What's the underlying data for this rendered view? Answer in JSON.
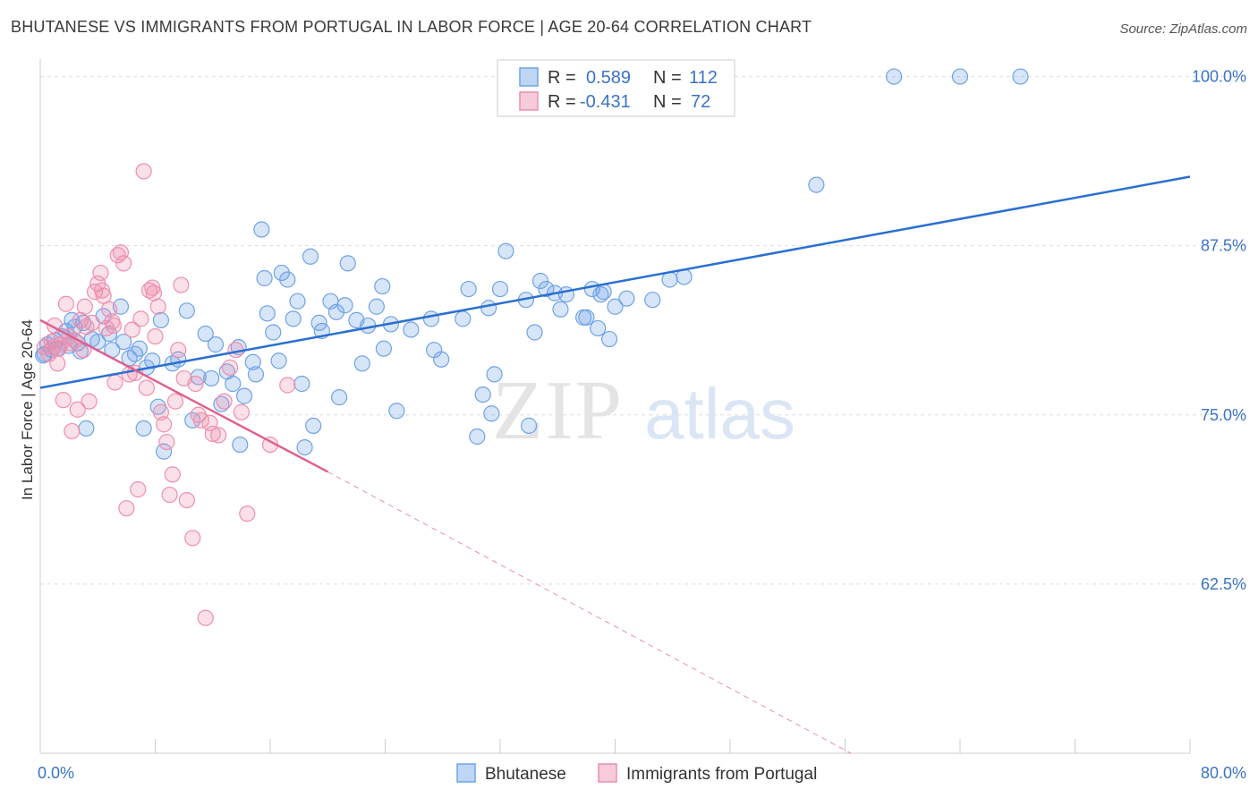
{
  "title": "BHUTANESE VS IMMIGRANTS FROM PORTUGAL IN LABOR FORCE | AGE 20-64 CORRELATION CHART",
  "source": "Source: ZipAtlas.com",
  "watermark": {
    "zip": "ZIP",
    "atlas": "atlas"
  },
  "colors": {
    "blue": "#6fa3e6",
    "blue_fill": "rgba(111,163,230,0.28)",
    "blue_line": "#2a6fd1",
    "pink": "#ee8fae",
    "pink_fill": "rgba(238,143,174,0.28)",
    "pink_line": "#e0608f",
    "tick_label": "#3b73c5",
    "grid": "#dddddd"
  },
  "legend": {
    "rows": [
      {
        "r_label": "R =",
        "r_value": "0.589",
        "n_label": "N =",
        "n_value": "112",
        "series": "blue"
      },
      {
        "r_label": "R =",
        "r_value": "-0.431",
        "n_label": "N =",
        "n_value": "72",
        "series": "pink"
      }
    ]
  },
  "chart_data": {
    "type": "scatter",
    "title": "BHUTANESE VS IMMIGRANTS FROM PORTUGAL IN LABOR FORCE | AGE 20-64 CORRELATION CHART",
    "xlabel": "",
    "ylabel": "In Labor Force | Age 20-64",
    "xlim": [
      0,
      80
    ],
    "ylim": [
      50,
      100.5
    ],
    "x_tick_labels": [
      "0.0%",
      "80.0%"
    ],
    "y_ticks": [
      62.5,
      75.0,
      87.5,
      100.0
    ],
    "y_tick_labels": [
      "62.5%",
      "75.0%",
      "87.5%",
      "100.0%"
    ],
    "grid": true,
    "legend_position": "top-center",
    "series": [
      {
        "name": "Bhutanese",
        "color": "blue",
        "trend": {
          "x": [
            0,
            80
          ],
          "y": [
            77.0,
            92.6
          ],
          "dashed_from": null
        },
        "points": [
          [
            0.3,
            79.5
          ],
          [
            0.5,
            80.2
          ],
          [
            0.8,
            79.8
          ],
          [
            1.0,
            80.5
          ],
          [
            1.2,
            79.9
          ],
          [
            1.5,
            80.8
          ],
          [
            1.8,
            81.2
          ],
          [
            2.0,
            80.1
          ],
          [
            2.2,
            82.0
          ],
          [
            2.4,
            81.5
          ],
          [
            2.6,
            80.3
          ],
          [
            2.8,
            79.7
          ],
          [
            3.0,
            81.8
          ],
          [
            3.2,
            74.0
          ],
          [
            3.6,
            80.6
          ],
          [
            4.0,
            80.4
          ],
          [
            4.4,
            82.3
          ],
          [
            4.8,
            81.0
          ],
          [
            5.0,
            79.8
          ],
          [
            5.6,
            83.0
          ],
          [
            5.8,
            80.4
          ],
          [
            6.2,
            79.2
          ],
          [
            6.6,
            79.5
          ],
          [
            6.9,
            79.9
          ],
          [
            7.2,
            74.0
          ],
          [
            7.4,
            78.5
          ],
          [
            7.8,
            79.0
          ],
          [
            8.2,
            75.6
          ],
          [
            8.6,
            72.3
          ],
          [
            8.4,
            82.0
          ],
          [
            9.2,
            78.8
          ],
          [
            9.6,
            79.1
          ],
          [
            10.2,
            82.7
          ],
          [
            10.6,
            74.6
          ],
          [
            11.0,
            77.8
          ],
          [
            11.5,
            81.0
          ],
          [
            11.9,
            77.7
          ],
          [
            12.2,
            80.2
          ],
          [
            12.6,
            75.8
          ],
          [
            13.0,
            78.2
          ],
          [
            13.4,
            77.3
          ],
          [
            13.8,
            80.0
          ],
          [
            14.2,
            76.4
          ],
          [
            13.9,
            72.8
          ],
          [
            14.8,
            78.9
          ],
          [
            15.0,
            78.0
          ],
          [
            15.4,
            88.7
          ],
          [
            15.6,
            85.1
          ],
          [
            15.8,
            82.5
          ],
          [
            16.2,
            81.1
          ],
          [
            16.6,
            79.0
          ],
          [
            16.8,
            85.5
          ],
          [
            17.2,
            85.0
          ],
          [
            17.6,
            82.1
          ],
          [
            17.9,
            83.4
          ],
          [
            18.2,
            77.3
          ],
          [
            18.4,
            72.6
          ],
          [
            18.8,
            86.7
          ],
          [
            19.0,
            74.2
          ],
          [
            19.4,
            81.8
          ],
          [
            19.6,
            81.2
          ],
          [
            20.2,
            83.4
          ],
          [
            20.6,
            82.6
          ],
          [
            20.8,
            76.3
          ],
          [
            21.2,
            83.1
          ],
          [
            21.4,
            86.2
          ],
          [
            22.0,
            82.0
          ],
          [
            22.4,
            78.8
          ],
          [
            22.8,
            81.6
          ],
          [
            23.4,
            83.0
          ],
          [
            23.8,
            84.5
          ],
          [
            23.9,
            79.9
          ],
          [
            24.4,
            81.7
          ],
          [
            24.8,
            75.3
          ],
          [
            25.8,
            81.3
          ],
          [
            27.2,
            82.1
          ],
          [
            27.4,
            79.8
          ],
          [
            27.9,
            79.1
          ],
          [
            29.4,
            82.1
          ],
          [
            29.8,
            84.3
          ],
          [
            30.4,
            73.4
          ],
          [
            30.8,
            76.5
          ],
          [
            31.2,
            82.9
          ],
          [
            31.4,
            75.1
          ],
          [
            31.6,
            78.0
          ],
          [
            32.0,
            84.3
          ],
          [
            32.4,
            87.1
          ],
          [
            33.8,
            83.5
          ],
          [
            34.0,
            74.2
          ],
          [
            34.4,
            81.1
          ],
          [
            34.8,
            84.9
          ],
          [
            35.2,
            84.3
          ],
          [
            35.8,
            84.0
          ],
          [
            36.2,
            82.8
          ],
          [
            36.6,
            83.9
          ],
          [
            37.8,
            82.2
          ],
          [
            38.0,
            82.2
          ],
          [
            38.4,
            84.3
          ],
          [
            38.8,
            81.4
          ],
          [
            39.0,
            83.9
          ],
          [
            39.2,
            84.1
          ],
          [
            39.6,
            80.6
          ],
          [
            40.0,
            83.0
          ],
          [
            40.8,
            83.6
          ],
          [
            42.6,
            83.5
          ],
          [
            43.8,
            85.0
          ],
          [
            44.8,
            85.2
          ],
          [
            54.0,
            92.0
          ],
          [
            59.4,
            100.0
          ],
          [
            64.0,
            100.0
          ],
          [
            68.2,
            100.0
          ],
          [
            0.2,
            79.4
          ]
        ]
      },
      {
        "name": "Immigrants from Portugal",
        "color": "pink",
        "trend": {
          "x": [
            0,
            20
          ],
          "y": [
            82.0,
            70.8
          ],
          "dashed_to": [
            56.4,
            50.0
          ]
        },
        "points": [
          [
            0.3,
            80.0
          ],
          [
            0.6,
            79.5
          ],
          [
            0.8,
            80.4
          ],
          [
            1.0,
            81.6
          ],
          [
            1.2,
            78.8
          ],
          [
            1.4,
            80.2
          ],
          [
            1.6,
            76.1
          ],
          [
            1.8,
            83.2
          ],
          [
            2.0,
            80.8
          ],
          [
            2.2,
            73.8
          ],
          [
            2.4,
            80.5
          ],
          [
            2.6,
            75.4
          ],
          [
            2.8,
            82.0
          ],
          [
            3.0,
            79.8
          ],
          [
            3.2,
            81.5
          ],
          [
            3.4,
            76.0
          ],
          [
            3.6,
            81.8
          ],
          [
            3.8,
            84.1
          ],
          [
            4.0,
            84.7
          ],
          [
            4.2,
            85.5
          ],
          [
            4.4,
            83.8
          ],
          [
            4.6,
            81.4
          ],
          [
            4.8,
            82.8
          ],
          [
            5.0,
            81.9
          ],
          [
            5.2,
            77.4
          ],
          [
            5.4,
            86.8
          ],
          [
            5.6,
            87.0
          ],
          [
            5.8,
            86.2
          ],
          [
            6.0,
            68.1
          ],
          [
            6.2,
            78.0
          ],
          [
            6.4,
            81.3
          ],
          [
            6.6,
            78.1
          ],
          [
            6.8,
            69.5
          ],
          [
            7.0,
            82.1
          ],
          [
            7.2,
            93.0
          ],
          [
            7.4,
            77.0
          ],
          [
            7.6,
            84.2
          ],
          [
            7.8,
            84.4
          ],
          [
            8.0,
            80.8
          ],
          [
            8.2,
            83.0
          ],
          [
            8.4,
            75.2
          ],
          [
            8.6,
            74.3
          ],
          [
            8.8,
            73.0
          ],
          [
            9.0,
            69.1
          ],
          [
            9.2,
            70.6
          ],
          [
            9.4,
            76.0
          ],
          [
            9.6,
            79.8
          ],
          [
            9.8,
            84.6
          ],
          [
            10.0,
            77.7
          ],
          [
            10.2,
            68.7
          ],
          [
            10.6,
            65.9
          ],
          [
            10.8,
            77.3
          ],
          [
            11.0,
            75.0
          ],
          [
            11.2,
            74.6
          ],
          [
            11.5,
            60.0
          ],
          [
            11.8,
            74.4
          ],
          [
            12.0,
            73.6
          ],
          [
            12.4,
            73.5
          ],
          [
            12.8,
            76.0
          ],
          [
            13.2,
            78.5
          ],
          [
            13.6,
            79.8
          ],
          [
            14.0,
            75.2
          ],
          [
            14.4,
            67.7
          ],
          [
            16.0,
            72.8
          ],
          [
            17.2,
            77.2
          ],
          [
            0.9,
            80.0
          ],
          [
            1.3,
            79.9
          ],
          [
            2.1,
            80.3
          ],
          [
            3.1,
            83.0
          ],
          [
            4.3,
            84.2
          ],
          [
            5.1,
            81.6
          ],
          [
            7.9,
            84.0
          ]
        ]
      }
    ]
  },
  "bottom_legend": [
    {
      "label": "Bhutanese",
      "color": "blue"
    },
    {
      "label": "Immigrants from Portugal",
      "color": "pink"
    }
  ]
}
